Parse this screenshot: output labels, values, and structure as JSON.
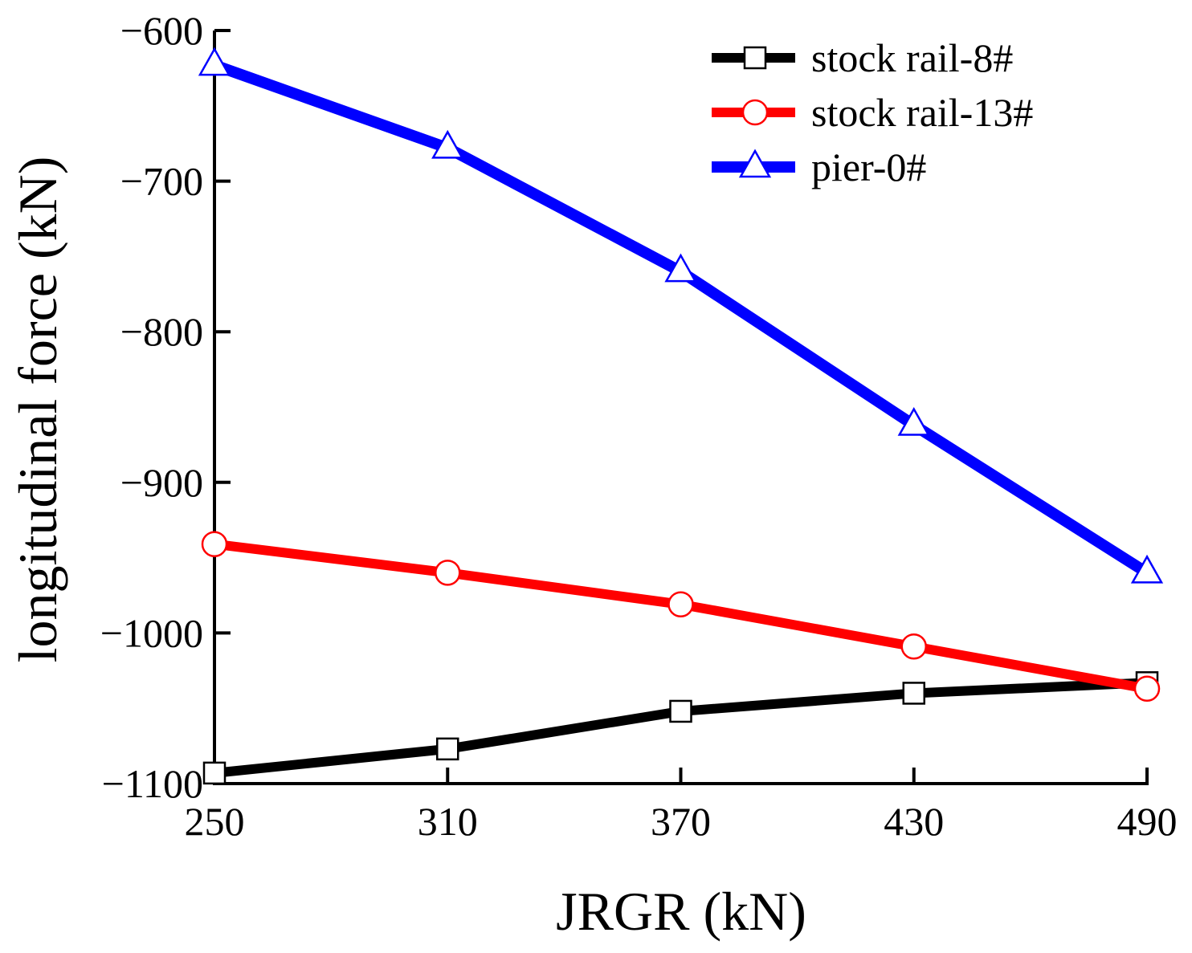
{
  "chart_data": {
    "type": "line",
    "title": "",
    "xlabel": "JRGR (kN)",
    "ylabel": "longitudinal force (kN)",
    "x": [
      250,
      310,
      370,
      430,
      490
    ],
    "xticks": [
      "250",
      "310",
      "370",
      "430",
      "490"
    ],
    "xlim": [
      250,
      490
    ],
    "ylim": [
      -1100,
      -600
    ],
    "yticks": [
      -600,
      -700,
      -800,
      -900,
      -1000,
      -1100
    ],
    "ytick_labels": [
      "−600",
      "−700",
      "−800",
      "−900",
      "−1000",
      "−1100"
    ],
    "grid": false,
    "legend_position": "top-right",
    "series": [
      {
        "name": "stock rail-8#",
        "color": "#000000",
        "marker": "square",
        "values": [
          -1093,
          -1077,
          -1052,
          -1040,
          -1033
        ]
      },
      {
        "name": "stock rail-13#",
        "color": "#ff0000",
        "marker": "circle",
        "values": [
          -941,
          -960,
          -981,
          -1009,
          -1037
        ]
      },
      {
        "name": "pier-0#",
        "color": "#0000ff",
        "marker": "triangle",
        "values": [
          -623,
          -678,
          -760,
          -862,
          -960
        ]
      }
    ]
  }
}
